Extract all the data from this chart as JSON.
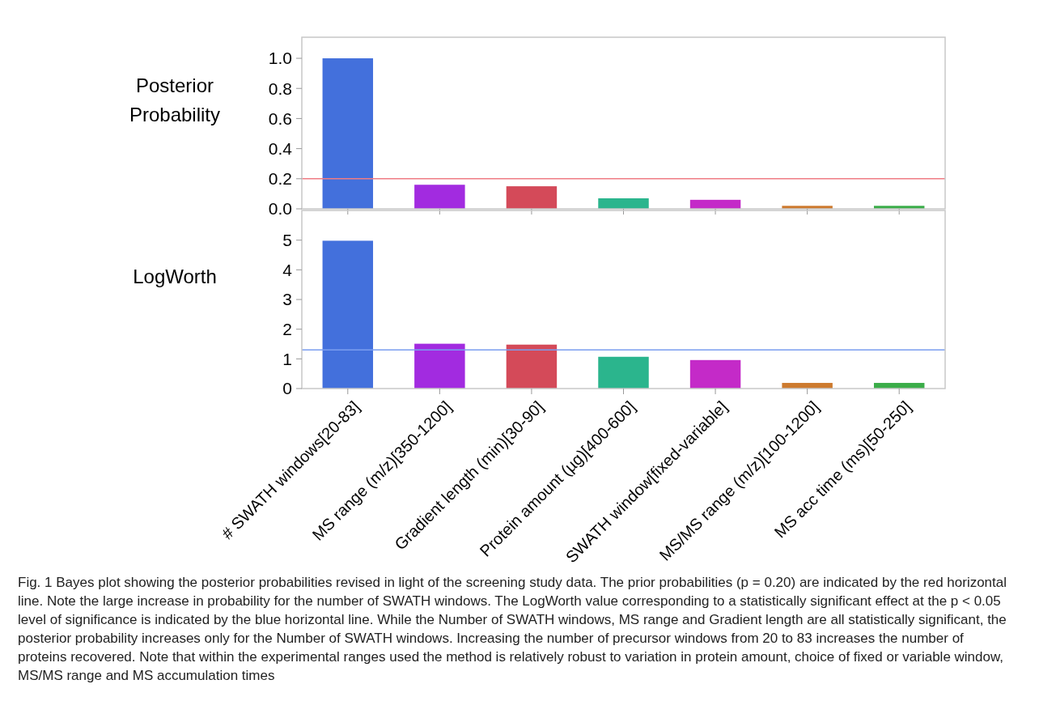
{
  "chart_data": [
    {
      "type": "bar",
      "ylabel": "Posterior Probability",
      "categories": [
        null,
        null,
        null,
        null,
        null,
        null,
        null
      ],
      "values": [
        1.0,
        0.16,
        0.15,
        0.07,
        0.06,
        0.02,
        0.02
      ],
      "colors": [
        "#4370dc",
        "#a22be0",
        "#d44a59",
        "#2bb58d",
        "#c42ac8",
        "#cd7a2e",
        "#3aad48"
      ],
      "ylim": [
        0,
        1.14
      ],
      "yticks": [
        {
          "value": 0,
          "label": "0.0"
        },
        0.2,
        0.4,
        0.6,
        0.8,
        {
          "value": 1,
          "label": "1.0"
        }
      ],
      "ref_lines": [
        {
          "axis": "y",
          "value": 0.2,
          "color": "#f07c84"
        }
      ],
      "tick_labels": "y"
    },
    {
      "type": "bar",
      "ylabel": "LogWorth",
      "categories": [
        "# SWATH windows[20-83]",
        "MS range (m/z)[350-1200]",
        "Gradient length (min)[30-90]",
        "Protein amount (µg)[400-600]",
        "SWATH window[fixed-variable]",
        "MS/MS range (m/z)[100-1200]",
        "MS acc time (ms)[50-250]"
      ],
      "values": [
        4.98,
        1.51,
        1.48,
        1.07,
        0.96,
        0.19,
        0.19
      ],
      "colors": [
        "#4370dc",
        "#a22be0",
        "#d44a59",
        "#2bb58d",
        "#c42ac8",
        "#cd7a2e",
        "#3aad48"
      ],
      "ylim": [
        0,
        6
      ],
      "yticks": [
        0,
        1,
        2,
        3,
        4,
        5
      ],
      "ref_lines": [
        {
          "axis": "y",
          "value": 1.3,
          "color": "#7b9ef0"
        }
      ],
      "annotations": [
        "Fig. 1 Bayes plot showing the posterior probabilities revised in light of the screening study data. The prior probabilities (p = 0.20) are indicated by the red horizontal line. Note the large increase in probability for the number of SWATH windows. The LogWorth value corresponding to a statistically significant effect at the p < 0.05 level of significance is indicated by the blue horizontal line. While the Number of SWATH windows, MS range and Gradient length are all statistically significant, the posterior probability increases only for the Number of SWATH windows. Increasing the number of precursor windows from 20 to 83 increases the number of proteins recovered. Note that within the experimental ranges used the method is relatively robust to variation in protein amount, choice of fixed or variable window, MS/MS range and MS accumulation times"
      ]
    }
  ]
}
